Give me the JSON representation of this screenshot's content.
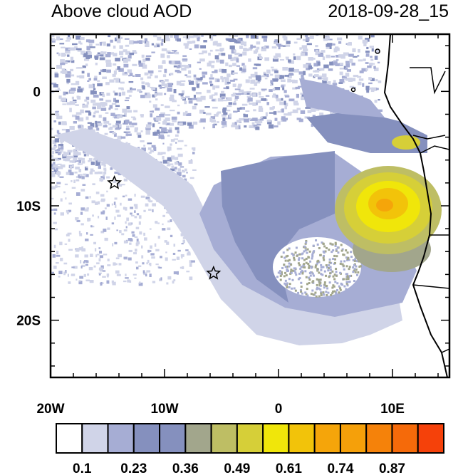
{
  "title": "Above cloud AOD",
  "timestamp": "2018-09-28_15",
  "chart_data": {
    "type": "heatmap",
    "title": "Above cloud AOD",
    "subtitle": "2018-09-28_15",
    "xlim": [
      -20,
      15
    ],
    "ylim": [
      -25,
      5
    ],
    "x_ticks": [
      {
        "value": -20,
        "label": "20W"
      },
      {
        "value": -10,
        "label": "10W"
      },
      {
        "value": 0,
        "label": "0"
      },
      {
        "value": 10,
        "label": "10E"
      }
    ],
    "y_ticks": [
      {
        "value": 0,
        "label": "0"
      },
      {
        "value": -10,
        "label": "10S"
      },
      {
        "value": -20,
        "label": "20S"
      }
    ],
    "colorbar": {
      "labels": [
        "0.1",
        "0.23",
        "0.36",
        "0.49",
        "0.61",
        "0.74",
        "0.87"
      ],
      "colors": [
        "#ffffff",
        "#d0d4e8",
        "#a6add4",
        "#8590be",
        "#8590be",
        "#a2a68c",
        "#bebe64",
        "#d6cf38",
        "#f0e60a",
        "#f2c30a",
        "#f5a50a",
        "#f5a00a",
        "#f5820a",
        "#f56a0a",
        "#f5410a"
      ],
      "placement": "bottom"
    },
    "markers": [
      {
        "symbol": "star",
        "lon": -14.4,
        "lat": -8.0
      },
      {
        "symbol": "star",
        "lon": -5.7,
        "lat": -15.9
      }
    ],
    "features": [
      "coastlines",
      "country borders"
    ]
  }
}
